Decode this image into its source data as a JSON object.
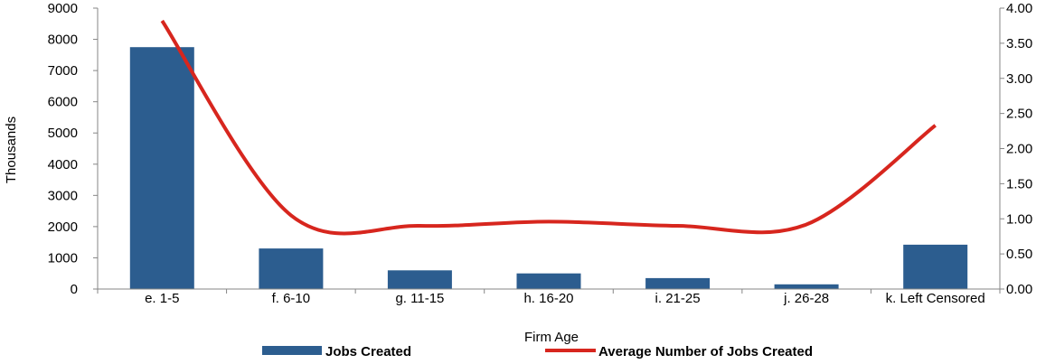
{
  "chart_data": {
    "type": "bar",
    "categories": [
      "e.  1-5",
      "f.  6-10",
      "g. 11-15",
      "h. 16-20",
      "i. 21-25",
      "j. 26-28",
      "k. Left Censored"
    ],
    "series": [
      {
        "name": "Jobs Created",
        "type": "bar",
        "axis": "left",
        "color": "#2C5D8F",
        "values": [
          7750,
          1300,
          600,
          500,
          350,
          150,
          1420
        ]
      },
      {
        "name": "Average Number of Jobs Created",
        "type": "line",
        "axis": "right",
        "color": "#D7261E",
        "smooth": true,
        "values": [
          3.82,
          1.05,
          0.9,
          0.96,
          0.9,
          0.92,
          2.33
        ]
      }
    ],
    "xlabel": "Firm Age",
    "ylabel": "Thousands",
    "y2label": "",
    "ylim": [
      0,
      9000
    ],
    "yticks": [
      "0",
      "1000",
      "2000",
      "3000",
      "4000",
      "5000",
      "6000",
      "7000",
      "8000",
      "9000"
    ],
    "y2lim": [
      0,
      4.0
    ],
    "y2ticks": [
      "0.00",
      "0.50",
      "1.00",
      "1.50",
      "2.00",
      "2.50",
      "3.00",
      "3.50",
      "4.00"
    ],
    "grid": false,
    "legend_position": "bottom"
  }
}
